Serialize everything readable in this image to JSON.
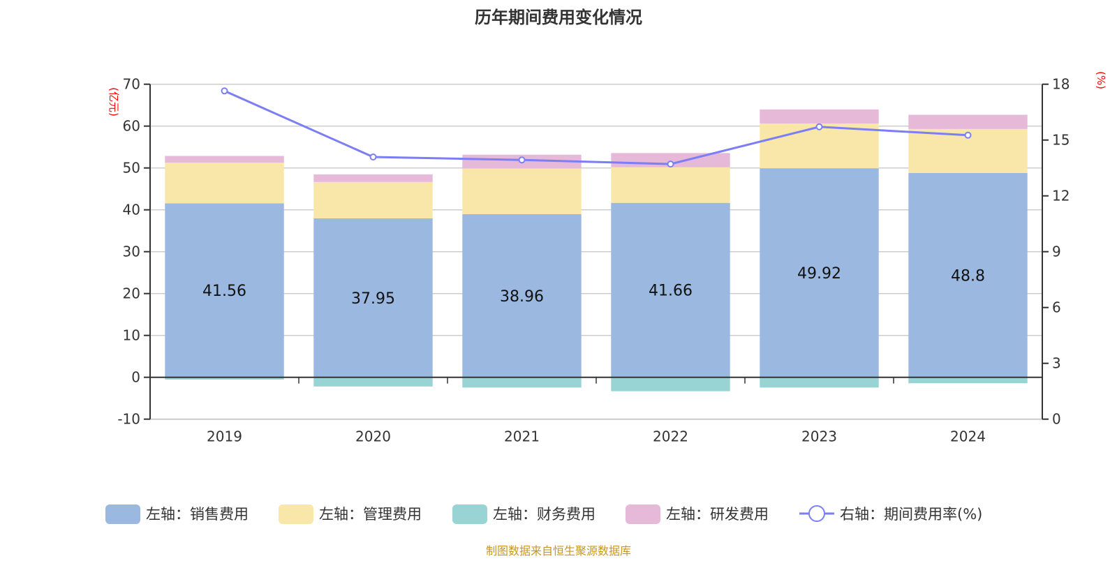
{
  "chart_data": {
    "type": "bar",
    "title": "历年期间费用变化情况",
    "left_axis_unit": "(亿元)",
    "right_axis_unit": "(%)",
    "categories": [
      "2019",
      "2020",
      "2021",
      "2022",
      "2023",
      "2024"
    ],
    "left_ylim": [
      -10,
      70
    ],
    "left_ticks": [
      "-10",
      "0",
      "10",
      "20",
      "30",
      "40",
      "50",
      "60",
      "70"
    ],
    "right_ylim": [
      0,
      18
    ],
    "right_ticks": [
      "0",
      "3",
      "6",
      "9",
      "12",
      "15",
      "18"
    ],
    "grid": true,
    "legend_position": "bottom",
    "series": [
      {
        "name": "左轴：销售费用",
        "kind": "bar",
        "stack": true,
        "color": "#9bb8e0",
        "values": [
          41.56,
          37.95,
          38.96,
          41.66,
          49.92,
          48.8
        ],
        "labels": [
          "41.56",
          "37.95",
          "38.96",
          "41.66",
          "49.92",
          "48.8"
        ]
      },
      {
        "name": "左轴：管理费用",
        "kind": "bar",
        "stack": true,
        "color": "#f8e7a9",
        "values": [
          9.7,
          8.7,
          10.9,
          8.5,
          10.7,
          10.5
        ]
      },
      {
        "name": "左轴：财务费用",
        "kind": "bar",
        "stack": true,
        "color": "#98d4d4",
        "values": [
          -0.55,
          -2.2,
          -2.45,
          -3.33,
          -2.45,
          -1.43
        ]
      },
      {
        "name": "左轴：研发费用",
        "kind": "bar",
        "stack": true,
        "color": "#e7b9d8",
        "values": [
          1.6,
          1.8,
          3.3,
          3.4,
          3.35,
          3.4
        ]
      },
      {
        "name": "右轴：期间费用率(%)",
        "kind": "line",
        "axis": "right",
        "color": "#7b7ef5",
        "values": [
          17.64,
          14.09,
          13.93,
          13.71,
          15.71,
          15.26
        ]
      }
    ]
  },
  "footer": "制图数据来自恒生聚源数据库"
}
